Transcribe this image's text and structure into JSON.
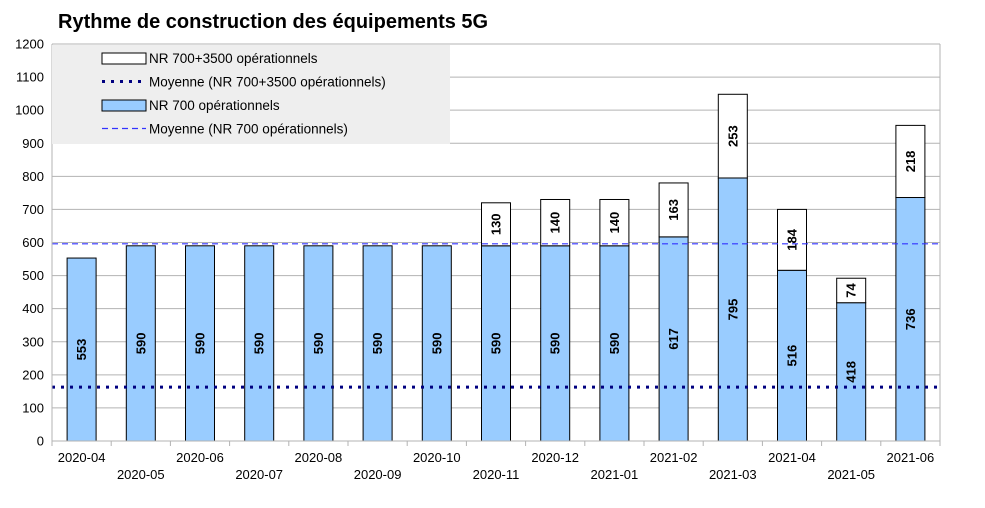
{
  "chart_data": {
    "type": "bar",
    "title": "Rythme de construction des équipements 5G",
    "categories": [
      "2020-04",
      "2020-05",
      "2020-06",
      "2020-07",
      "2020-08",
      "2020-09",
      "2020-10",
      "2020-11",
      "2020-12",
      "2021-01",
      "2021-02",
      "2021-03",
      "2021-04",
      "2021-05",
      "2021-06"
    ],
    "series": [
      {
        "name": "NR 700 opérationnels",
        "values": [
          553,
          590,
          590,
          590,
          590,
          590,
          590,
          590,
          590,
          590,
          617,
          795,
          516,
          418,
          736
        ],
        "color": "#99ccff"
      },
      {
        "name": "NR 700+3500 opérationnels",
        "values": [
          null,
          null,
          null,
          null,
          null,
          null,
          null,
          130,
          140,
          140,
          163,
          253,
          184,
          74,
          218
        ],
        "color": "#ffffff",
        "stacked_on": "NR 700 opérationnels"
      }
    ],
    "reference_lines": [
      {
        "name": "Moyenne (NR 700+3500 opérationnels)",
        "value": 163,
        "style": "dotted",
        "color": "#000080"
      },
      {
        "name": "Moyenne (NR 700 opérationnels)",
        "value": 596,
        "style": "dashed",
        "color": "#3333ff"
      }
    ],
    "legend": {
      "placement": "top-left",
      "order": [
        "NR 700+3500 opérationnels",
        "Moyenne (NR 700+3500 opérationnels)",
        "NR 700 opérationnels",
        "Moyenne (NR 700 opérationnels)"
      ]
    },
    "ylim": [
      0,
      1200
    ],
    "yticks": [
      "0",
      "100",
      "200",
      "300",
      "400",
      "500",
      "600",
      "700",
      "800",
      "900",
      "1000",
      "1100",
      "1200"
    ],
    "xlabel": "",
    "ylabel": "",
    "grid": true
  }
}
